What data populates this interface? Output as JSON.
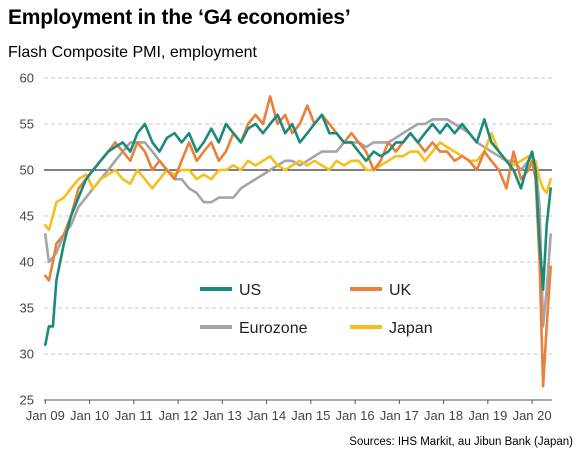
{
  "title": "Employment in the ‘G4 economies’",
  "subtitle": "Flash Composite PMI, employment",
  "source": "Sources: IHS Markit, au Jibun Bank (Japan)",
  "chart_data": {
    "type": "line",
    "ylim": [
      25,
      60
    ],
    "yticks": [
      25,
      30,
      35,
      40,
      45,
      50,
      55,
      60
    ],
    "xlim": [
      2008.97,
      2020.45
    ],
    "xticks": [
      {
        "label": "Jan 09",
        "value": 2009
      },
      {
        "label": "Jan 10",
        "value": 2010
      },
      {
        "label": "Jan 11",
        "value": 2011
      },
      {
        "label": "Jan 12",
        "value": 2012
      },
      {
        "label": "Jan 13",
        "value": 2013
      },
      {
        "label": "Jan 14",
        "value": 2014
      },
      {
        "label": "Jan 15",
        "value": 2015
      },
      {
        "label": "Jan 16",
        "value": 2016
      },
      {
        "label": "Jan 17",
        "value": 2017
      },
      {
        "label": "Jan 18",
        "value": 2018
      },
      {
        "label": "Jan 19",
        "value": 2019
      },
      {
        "label": "Jan 20",
        "value": 2020
      }
    ],
    "reference_line": 50,
    "grid": "horizontal dashed",
    "legend": "center",
    "series": [
      {
        "name": "US",
        "color": "#1b8a7a",
        "points": [
          [
            2009.0,
            31
          ],
          [
            2009.08,
            33
          ],
          [
            2009.17,
            33
          ],
          [
            2009.25,
            38
          ],
          [
            2009.42,
            42
          ],
          [
            2009.58,
            45
          ],
          [
            2009.75,
            47
          ],
          [
            2009.92,
            49
          ],
          [
            2010.08,
            50
          ],
          [
            2010.25,
            51
          ],
          [
            2010.42,
            52
          ],
          [
            2010.58,
            52.5
          ],
          [
            2010.75,
            53
          ],
          [
            2010.92,
            52
          ],
          [
            2011.08,
            54
          ],
          [
            2011.25,
            55
          ],
          [
            2011.42,
            53
          ],
          [
            2011.58,
            52
          ],
          [
            2011.75,
            53.5
          ],
          [
            2011.92,
            54
          ],
          [
            2012.08,
            53
          ],
          [
            2012.25,
            54
          ],
          [
            2012.42,
            52
          ],
          [
            2012.58,
            53
          ],
          [
            2012.75,
            54.5
          ],
          [
            2012.92,
            53
          ],
          [
            2013.08,
            55
          ],
          [
            2013.25,
            54
          ],
          [
            2013.42,
            53
          ],
          [
            2013.58,
            54.5
          ],
          [
            2013.75,
            55
          ],
          [
            2013.92,
            54
          ],
          [
            2014.08,
            55
          ],
          [
            2014.25,
            56
          ],
          [
            2014.42,
            54
          ],
          [
            2014.58,
            55
          ],
          [
            2014.75,
            53
          ],
          [
            2014.92,
            54
          ],
          [
            2015.08,
            55
          ],
          [
            2015.25,
            56
          ],
          [
            2015.42,
            54
          ],
          [
            2015.58,
            54
          ],
          [
            2015.75,
            53
          ],
          [
            2015.92,
            53
          ],
          [
            2016.08,
            52
          ],
          [
            2016.25,
            51
          ],
          [
            2016.42,
            52
          ],
          [
            2016.58,
            51.5
          ],
          [
            2016.75,
            52
          ],
          [
            2016.92,
            53
          ],
          [
            2017.08,
            53
          ],
          [
            2017.25,
            54
          ],
          [
            2017.42,
            53
          ],
          [
            2017.58,
            54
          ],
          [
            2017.75,
            55
          ],
          [
            2017.92,
            54
          ],
          [
            2018.08,
            55
          ],
          [
            2018.25,
            54
          ],
          [
            2018.42,
            55
          ],
          [
            2018.58,
            54
          ],
          [
            2018.75,
            53
          ],
          [
            2018.92,
            55.5
          ],
          [
            2019.08,
            53
          ],
          [
            2019.25,
            52
          ],
          [
            2019.42,
            51
          ],
          [
            2019.58,
            50
          ],
          [
            2019.75,
            48
          ],
          [
            2019.92,
            51
          ],
          [
            2020.0,
            52
          ],
          [
            2020.08,
            50
          ],
          [
            2020.17,
            42
          ],
          [
            2020.25,
            37
          ],
          [
            2020.33,
            44
          ],
          [
            2020.42,
            48
          ]
        ]
      },
      {
        "name": "UK",
        "color": "#e8813a",
        "points": [
          [
            2009.0,
            38.5
          ],
          [
            2009.08,
            38
          ],
          [
            2009.17,
            40
          ],
          [
            2009.25,
            42
          ],
          [
            2009.42,
            43
          ],
          [
            2009.58,
            45
          ],
          [
            2009.75,
            48
          ],
          [
            2009.92,
            49
          ],
          [
            2010.08,
            50
          ],
          [
            2010.25,
            51
          ],
          [
            2010.42,
            52
          ],
          [
            2010.58,
            53
          ],
          [
            2010.75,
            52
          ],
          [
            2010.92,
            51
          ],
          [
            2011.08,
            53
          ],
          [
            2011.25,
            52
          ],
          [
            2011.42,
            50
          ],
          [
            2011.58,
            51
          ],
          [
            2011.75,
            50
          ],
          [
            2011.92,
            49
          ],
          [
            2012.08,
            51
          ],
          [
            2012.25,
            53
          ],
          [
            2012.42,
            51
          ],
          [
            2012.58,
            52
          ],
          [
            2012.75,
            53
          ],
          [
            2012.92,
            51
          ],
          [
            2013.08,
            52
          ],
          [
            2013.25,
            54
          ],
          [
            2013.42,
            53
          ],
          [
            2013.58,
            55
          ],
          [
            2013.75,
            56
          ],
          [
            2013.92,
            55
          ],
          [
            2014.08,
            58
          ],
          [
            2014.25,
            55
          ],
          [
            2014.42,
            56
          ],
          [
            2014.58,
            54
          ],
          [
            2014.75,
            55
          ],
          [
            2014.92,
            57
          ],
          [
            2015.08,
            55
          ],
          [
            2015.25,
            56
          ],
          [
            2015.42,
            55
          ],
          [
            2015.58,
            54
          ],
          [
            2015.75,
            53
          ],
          [
            2015.92,
            54
          ],
          [
            2016.08,
            53
          ],
          [
            2016.25,
            52
          ],
          [
            2016.42,
            50
          ],
          [
            2016.58,
            51
          ],
          [
            2016.75,
            53
          ],
          [
            2016.92,
            52
          ],
          [
            2017.08,
            53
          ],
          [
            2017.25,
            54
          ],
          [
            2017.42,
            53
          ],
          [
            2017.58,
            52
          ],
          [
            2017.75,
            53
          ],
          [
            2017.92,
            52
          ],
          [
            2018.08,
            52
          ],
          [
            2018.25,
            51
          ],
          [
            2018.42,
            51.5
          ],
          [
            2018.58,
            51
          ],
          [
            2018.75,
            50
          ],
          [
            2018.92,
            52
          ],
          [
            2019.08,
            51
          ],
          [
            2019.25,
            50
          ],
          [
            2019.42,
            48
          ],
          [
            2019.58,
            52
          ],
          [
            2019.75,
            49
          ],
          [
            2019.92,
            50
          ],
          [
            2020.0,
            51
          ],
          [
            2020.08,
            49
          ],
          [
            2020.17,
            40
          ],
          [
            2020.25,
            26.5
          ],
          [
            2020.33,
            33
          ],
          [
            2020.42,
            39.5
          ]
        ]
      },
      {
        "name": "Eurozone",
        "color": "#a5a5a5",
        "points": [
          [
            2009.0,
            43
          ],
          [
            2009.08,
            40
          ],
          [
            2009.17,
            40.5
          ],
          [
            2009.25,
            41
          ],
          [
            2009.42,
            43
          ],
          [
            2009.58,
            44
          ],
          [
            2009.75,
            46
          ],
          [
            2009.92,
            47
          ],
          [
            2010.08,
            48
          ],
          [
            2010.25,
            49
          ],
          [
            2010.42,
            50
          ],
          [
            2010.58,
            51
          ],
          [
            2010.75,
            52
          ],
          [
            2010.92,
            53
          ],
          [
            2011.08,
            53
          ],
          [
            2011.25,
            53
          ],
          [
            2011.42,
            52
          ],
          [
            2011.58,
            51
          ],
          [
            2011.75,
            50
          ],
          [
            2011.92,
            49
          ],
          [
            2012.08,
            49
          ],
          [
            2012.25,
            48
          ],
          [
            2012.42,
            47.5
          ],
          [
            2012.58,
            46.5
          ],
          [
            2012.75,
            46.5
          ],
          [
            2012.92,
            47
          ],
          [
            2013.08,
            47
          ],
          [
            2013.25,
            47
          ],
          [
            2013.42,
            48
          ],
          [
            2013.58,
            48.5
          ],
          [
            2013.75,
            49
          ],
          [
            2013.92,
            49.5
          ],
          [
            2014.08,
            50
          ],
          [
            2014.25,
            50.5
          ],
          [
            2014.42,
            51
          ],
          [
            2014.58,
            51
          ],
          [
            2014.75,
            50.5
          ],
          [
            2014.92,
            51
          ],
          [
            2015.08,
            51.5
          ],
          [
            2015.25,
            52
          ],
          [
            2015.42,
            52
          ],
          [
            2015.58,
            52
          ],
          [
            2015.75,
            53
          ],
          [
            2015.92,
            53
          ],
          [
            2016.08,
            53
          ],
          [
            2016.25,
            52.5
          ],
          [
            2016.42,
            53
          ],
          [
            2016.58,
            53
          ],
          [
            2016.75,
            53
          ],
          [
            2016.92,
            53.5
          ],
          [
            2017.08,
            54
          ],
          [
            2017.25,
            54.5
          ],
          [
            2017.42,
            55
          ],
          [
            2017.58,
            55
          ],
          [
            2017.75,
            55.5
          ],
          [
            2017.92,
            55.5
          ],
          [
            2018.08,
            55.5
          ],
          [
            2018.25,
            55
          ],
          [
            2018.42,
            54.5
          ],
          [
            2018.58,
            54
          ],
          [
            2018.75,
            53
          ],
          [
            2018.92,
            52.5
          ],
          [
            2019.08,
            52
          ],
          [
            2019.25,
            51.5
          ],
          [
            2019.42,
            51
          ],
          [
            2019.58,
            51
          ],
          [
            2019.75,
            50
          ],
          [
            2019.92,
            51
          ],
          [
            2020.0,
            51.5
          ],
          [
            2020.08,
            50.5
          ],
          [
            2020.17,
            46
          ],
          [
            2020.25,
            33
          ],
          [
            2020.33,
            37
          ],
          [
            2020.42,
            43
          ]
        ]
      },
      {
        "name": "Japan",
        "color": "#f5bf1c",
        "points": [
          [
            2009.0,
            44
          ],
          [
            2009.08,
            43.5
          ],
          [
            2009.17,
            45
          ],
          [
            2009.25,
            46.5
          ],
          [
            2009.42,
            47
          ],
          [
            2009.58,
            48
          ],
          [
            2009.75,
            49
          ],
          [
            2009.92,
            49.5
          ],
          [
            2010.08,
            48
          ],
          [
            2010.25,
            49
          ],
          [
            2010.42,
            49.5
          ],
          [
            2010.58,
            50
          ],
          [
            2010.75,
            49
          ],
          [
            2010.92,
            48.5
          ],
          [
            2011.08,
            50
          ],
          [
            2011.25,
            49
          ],
          [
            2011.42,
            48
          ],
          [
            2011.58,
            49
          ],
          [
            2011.75,
            50
          ],
          [
            2011.92,
            49.5
          ],
          [
            2012.08,
            50
          ],
          [
            2012.25,
            50
          ],
          [
            2012.42,
            49
          ],
          [
            2012.58,
            49.5
          ],
          [
            2012.75,
            49
          ],
          [
            2012.92,
            50
          ],
          [
            2013.08,
            50
          ],
          [
            2013.25,
            50.5
          ],
          [
            2013.42,
            50
          ],
          [
            2013.58,
            51
          ],
          [
            2013.75,
            50.5
          ],
          [
            2013.92,
            51
          ],
          [
            2014.08,
            51.5
          ],
          [
            2014.25,
            50.5
          ],
          [
            2014.42,
            50
          ],
          [
            2014.58,
            50.5
          ],
          [
            2014.75,
            51
          ],
          [
            2014.92,
            50.5
          ],
          [
            2015.08,
            51
          ],
          [
            2015.25,
            50.5
          ],
          [
            2015.42,
            50
          ],
          [
            2015.58,
            51
          ],
          [
            2015.75,
            50.5
          ],
          [
            2015.92,
            51
          ],
          [
            2016.08,
            51
          ],
          [
            2016.25,
            50
          ],
          [
            2016.42,
            50
          ],
          [
            2016.58,
            50.5
          ],
          [
            2016.75,
            51
          ],
          [
            2016.92,
            51.5
          ],
          [
            2017.08,
            51.5
          ],
          [
            2017.25,
            52
          ],
          [
            2017.42,
            52
          ],
          [
            2017.58,
            51
          ],
          [
            2017.75,
            52
          ],
          [
            2017.92,
            53
          ],
          [
            2018.08,
            52.5
          ],
          [
            2018.25,
            52
          ],
          [
            2018.42,
            51.5
          ],
          [
            2018.58,
            51
          ],
          [
            2018.75,
            51
          ],
          [
            2018.92,
            52
          ],
          [
            2019.08,
            54
          ],
          [
            2019.25,
            52
          ],
          [
            2019.42,
            51
          ],
          [
            2019.58,
            50.5
          ],
          [
            2019.75,
            51
          ],
          [
            2019.92,
            51.5
          ],
          [
            2020.0,
            50.5
          ],
          [
            2020.08,
            51
          ],
          [
            2020.17,
            49
          ],
          [
            2020.25,
            48
          ],
          [
            2020.33,
            47.5
          ],
          [
            2020.42,
            49
          ]
        ]
      }
    ]
  }
}
